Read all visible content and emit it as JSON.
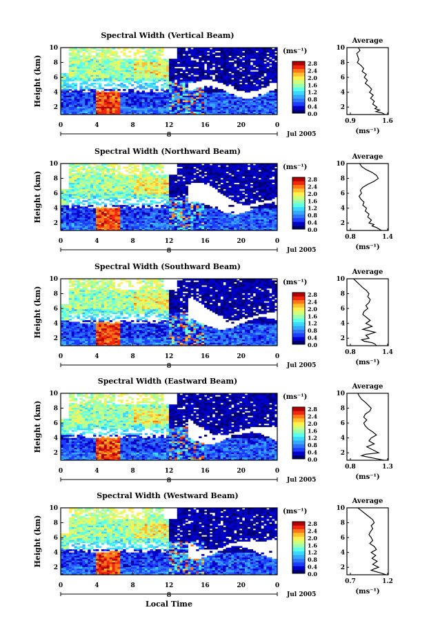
{
  "colors": {
    "scale": [
      "#000070",
      "#0000c8",
      "#1c3cff",
      "#2e74ff",
      "#38a8ff",
      "#3cd8ff",
      "#5cffe8",
      "#9cffb0",
      "#ceff7c",
      "#fff050",
      "#ffc030",
      "#ff7818",
      "#f02810",
      "#b00000"
    ],
    "empty": "#ffffff"
  },
  "x_label": "Local Time",
  "avg_title": "Average",
  "units": "(ms⁻¹)",
  "colorbar_ticks": [
    "2.8",
    "2.4",
    "2.0",
    "1.6",
    "1.2",
    "0.8",
    "0.4",
    "0.0"
  ],
  "panels": [
    {
      "title": "Spectral Width (Vertical Beam)",
      "date": "Jul 2005",
      "day": "8",
      "avg_ticks": [
        "0.9",
        "1.6"
      ]
    },
    {
      "title": "Spectral Width (Northward Beam)",
      "date": "Jul 2005",
      "day": "8",
      "avg_ticks": [
        "0.8",
        "1.4"
      ]
    },
    {
      "title": "Spectral Width (Southward Beam)",
      "date": "Jul 2005",
      "day": "8",
      "avg_ticks": [
        "0.8",
        "1.4"
      ]
    },
    {
      "title": "Spectral Width (Eastward Beam)",
      "date": "Jul 2005",
      "day": "8",
      "avg_ticks": [
        "0.8",
        "1.3"
      ]
    },
    {
      "title": "Spectral Width (Westward Beam)",
      "date": "Jul 2005",
      "day": "8",
      "avg_ticks": [
        "0.7",
        "1.2"
      ]
    }
  ],
  "chart_data": [
    {
      "type": "heatmap",
      "title": "Spectral Width (Vertical Beam)",
      "ylabel": "Height (km)",
      "units": "(ms⁻¹)",
      "x_ticks": [
        "0",
        "4",
        "8",
        "12",
        "16",
        "20",
        "0"
      ],
      "y_ticks": [
        "2",
        "4",
        "6",
        "8",
        "10"
      ],
      "xlim": [
        0,
        24
      ],
      "ylim": [
        1,
        10
      ],
      "clim": [
        0,
        3.0
      ],
      "date": "Jul 2005",
      "day": "8"
    },
    {
      "type": "line",
      "title": "Average",
      "xlabel": "(ms⁻¹)",
      "xlim": [
        0.9,
        1.6
      ],
      "ylim": [
        1,
        10
      ],
      "x_ticks": [
        "0.9",
        "1.6"
      ],
      "y_ticks": [
        "2",
        "4",
        "6",
        "8",
        "10"
      ],
      "series": [
        {
          "x": [
            1.05,
            1.08,
            1.02,
            1.04,
            1.06,
            1.03,
            1.1,
            1.15,
            1.12,
            1.2,
            1.16,
            1.22,
            1.18,
            1.25,
            1.3,
            1.26,
            1.33,
            1.28,
            1.35,
            1.32,
            1.4,
            1.36,
            1.45,
            1.38,
            1.5,
            1.55
          ],
          "y": [
            10,
            9.6,
            9.2,
            8.8,
            8.4,
            8,
            7.6,
            7.2,
            6.8,
            6.4,
            6,
            5.6,
            5.2,
            4.8,
            4.4,
            4,
            3.6,
            3.2,
            2.8,
            2.4,
            2,
            1.8,
            1.6,
            1.4,
            1.2,
            1
          ]
        }
      ]
    },
    {
      "type": "heatmap",
      "title": "Spectral Width (Northward Beam)",
      "ylabel": "Height (km)",
      "units": "(ms⁻¹)",
      "x_ticks": [
        "0",
        "4",
        "8",
        "12",
        "16",
        "20",
        "0"
      ],
      "y_ticks": [
        "2",
        "4",
        "6",
        "8",
        "10"
      ],
      "xlim": [
        0,
        24
      ],
      "ylim": [
        1,
        10
      ],
      "clim": [
        0,
        3.0
      ],
      "date": "Jul 2005",
      "day": "8"
    },
    {
      "type": "line",
      "title": "Average",
      "xlabel": "(ms⁻¹)",
      "xlim": [
        0.8,
        1.4
      ],
      "ylim": [
        1,
        10
      ],
      "x_ticks": [
        "0.8",
        "1.4"
      ],
      "y_ticks": [
        "2",
        "4",
        "6",
        "8",
        "10"
      ],
      "series": [
        {
          "x": [
            0.95,
            0.98,
            1.05,
            1.15,
            1.22,
            1.25,
            1.18,
            1.08,
            1.0,
            0.96,
            0.98,
            0.94,
            0.97,
            1.02,
            1.0,
            1.06,
            1.04,
            1.1,
            1.08,
            1.14,
            1.1,
            1.18,
            1.15,
            1.22,
            1.26,
            1.3
          ],
          "y": [
            10,
            9.6,
            9.2,
            8.8,
            8.4,
            8,
            7.6,
            7.2,
            6.8,
            6.4,
            6,
            5.6,
            5.2,
            4.8,
            4.4,
            4,
            3.6,
            3.2,
            2.8,
            2.4,
            2,
            1.8,
            1.6,
            1.4,
            1.2,
            1
          ]
        }
      ]
    },
    {
      "type": "heatmap",
      "title": "Spectral Width (Southward Beam)",
      "ylabel": "Height (km)",
      "units": "(ms⁻¹)",
      "x_ticks": [
        "0",
        "4",
        "8",
        "12",
        "16",
        "20",
        "0"
      ],
      "y_ticks": [
        "2",
        "4",
        "6",
        "8",
        "10"
      ],
      "xlim": [
        0,
        24
      ],
      "ylim": [
        1,
        10
      ],
      "clim": [
        0,
        3.0
      ],
      "date": "Jul 2005",
      "day": "8"
    },
    {
      "type": "line",
      "title": "Average",
      "xlabel": "(ms⁻¹)",
      "xlim": [
        0.8,
        1.4
      ],
      "ylim": [
        1,
        10
      ],
      "x_ticks": [
        "0.8",
        "1.4"
      ],
      "y_ticks": [
        "2",
        "4",
        "6",
        "8",
        "10"
      ],
      "series": [
        {
          "x": [
            0.85,
            0.9,
            0.95,
            1.0,
            1.06,
            1.1,
            1.08,
            1.12,
            1.1,
            1.05,
            1.08,
            1.02,
            1.0,
            1.06,
            1.12,
            1.05,
            1.15,
            1.0,
            1.2,
            1.05,
            1.1,
            0.98,
            1.02,
            1.15,
            1.2,
            1.22
          ],
          "y": [
            10,
            9.6,
            9.2,
            8.8,
            8.4,
            8,
            7.6,
            7.2,
            6.8,
            6.4,
            6,
            5.6,
            5.2,
            4.8,
            4.4,
            4,
            3.6,
            3.2,
            2.8,
            2.4,
            2,
            1.8,
            1.6,
            1.4,
            1.2,
            1
          ]
        }
      ]
    },
    {
      "type": "heatmap",
      "title": "Spectral Width (Eastward Beam)",
      "ylabel": "Height (km)",
      "units": "(ms⁻¹)",
      "x_ticks": [
        "0",
        "4",
        "8",
        "12",
        "16",
        "20",
        "0"
      ],
      "y_ticks": [
        "2",
        "4",
        "6",
        "8",
        "10"
      ],
      "xlim": [
        0,
        24
      ],
      "ylim": [
        1,
        10
      ],
      "clim": [
        0,
        3.0
      ],
      "date": "Jul 2005",
      "day": "8"
    },
    {
      "type": "line",
      "title": "Average",
      "xlabel": "(ms⁻¹)",
      "xlim": [
        0.8,
        1.3
      ],
      "ylim": [
        1,
        10
      ],
      "x_ticks": [
        "0.8",
        "1.3"
      ],
      "y_ticks": [
        "2",
        "4",
        "6",
        "8",
        "10"
      ],
      "series": [
        {
          "x": [
            0.9,
            0.92,
            0.95,
            1.0,
            1.04,
            1.08,
            1.06,
            1.0,
            0.98,
            1.02,
            0.98,
            1.0,
            1.04,
            1.1,
            1.15,
            1.08,
            1.05,
            1.12,
            1.02,
            1.1,
            1.18,
            1.0,
            0.95,
            1.05,
            1.15,
            1.25
          ],
          "y": [
            10,
            9.6,
            9.2,
            8.8,
            8.4,
            8,
            7.6,
            7.2,
            6.8,
            6.4,
            6,
            5.6,
            5.2,
            4.8,
            4.4,
            4,
            3.6,
            3.2,
            2.8,
            2.4,
            2,
            1.8,
            1.6,
            1.4,
            1.2,
            1
          ]
        }
      ]
    },
    {
      "type": "heatmap",
      "title": "Spectral Width (Westward Beam)",
      "ylabel": "Height (km)",
      "units": "(ms⁻¹)",
      "x_ticks": [
        "0",
        "4",
        "8",
        "12",
        "16",
        "20",
        "0"
      ],
      "y_ticks": [
        "2",
        "4",
        "6",
        "8",
        "10"
      ],
      "xlim": [
        0,
        24
      ],
      "ylim": [
        1,
        10
      ],
      "clim": [
        0,
        3.0
      ],
      "date": "Jul 2005",
      "day": "8"
    },
    {
      "type": "line",
      "title": "Average",
      "xlabel": "(ms⁻¹)",
      "xlim": [
        0.7,
        1.2
      ],
      "ylim": [
        1,
        10
      ],
      "x_ticks": [
        "0.7",
        "1.2"
      ],
      "y_ticks": [
        "2",
        "4",
        "6",
        "8",
        "10"
      ],
      "series": [
        {
          "x": [
            0.8,
            0.85,
            0.9,
            0.95,
            1.0,
            1.02,
            0.98,
            1.0,
            0.97,
            0.95,
            0.98,
            1.0,
            0.96,
            1.02,
            1.05,
            0.98,
            1.04,
            0.99,
            1.06,
            1.0,
            1.08,
            1.02,
            0.98,
            1.05,
            1.12,
            1.18
          ],
          "y": [
            10,
            9.6,
            9.2,
            8.8,
            8.4,
            8,
            7.6,
            7.2,
            6.8,
            6.4,
            6,
            5.6,
            5.2,
            4.8,
            4.4,
            4,
            3.6,
            3.2,
            2.8,
            2.4,
            2,
            1.8,
            1.6,
            1.4,
            1.2,
            1
          ]
        }
      ]
    }
  ]
}
